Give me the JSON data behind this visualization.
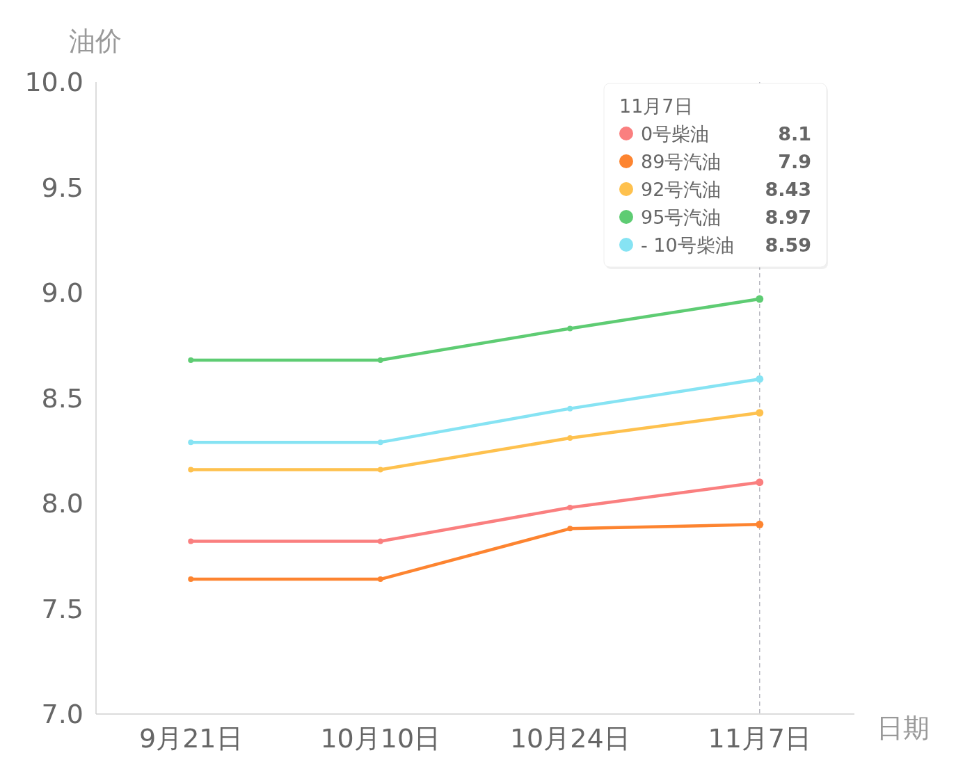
{
  "chart_data": {
    "type": "line",
    "xlabel": "日期",
    "ylabel": "油价",
    "legend_title": "11月7日",
    "categories": [
      "9月21日",
      "10月10日",
      "10月24日",
      "11月7日"
    ],
    "ylim": [
      7,
      10
    ],
    "yticks": [
      {
        "value": 7,
        "label": "7.0"
      },
      {
        "value": 7.5,
        "label": "7.5"
      },
      {
        "value": 8,
        "label": "8.0"
      },
      {
        "value": 8.5,
        "label": "8.5"
      },
      {
        "value": 9,
        "label": "9.0"
      },
      {
        "value": 9.5,
        "label": "9.5"
      },
      {
        "value": 10,
        "label": "10.0"
      }
    ],
    "annotations": [
      "8.1",
      "7.9",
      "8.43",
      "8.97",
      "8.59"
    ],
    "grid": false,
    "legend": "top right",
    "marker": "circle",
    "line_style": "solid",
    "ref_lines": [
      {
        "axis": "x",
        "value": "11月7日",
        "color": "#b8b8c0",
        "line_style": "dashed"
      }
    ],
    "series": [
      {
        "name": "0号柴油",
        "color": "#fa7f7f",
        "values": [
          7.82,
          7.82,
          7.98,
          8.1
        ]
      },
      {
        "name": "89号汽油",
        "color": "#fd8430",
        "values": [
          7.64,
          7.64,
          7.88,
          7.9
        ]
      },
      {
        "name": "92号汽油",
        "color": "#fec14e",
        "values": [
          8.16,
          8.16,
          8.31,
          8.43
        ]
      },
      {
        "name": "95号汽油",
        "color": "#5ecc73",
        "values": [
          8.68,
          8.68,
          8.83,
          8.97
        ]
      },
      {
        "name": " - 10号柴油",
        "color": "#86e3f3",
        "values": [
          8.29,
          8.29,
          8.45,
          8.59
        ]
      }
    ]
  }
}
